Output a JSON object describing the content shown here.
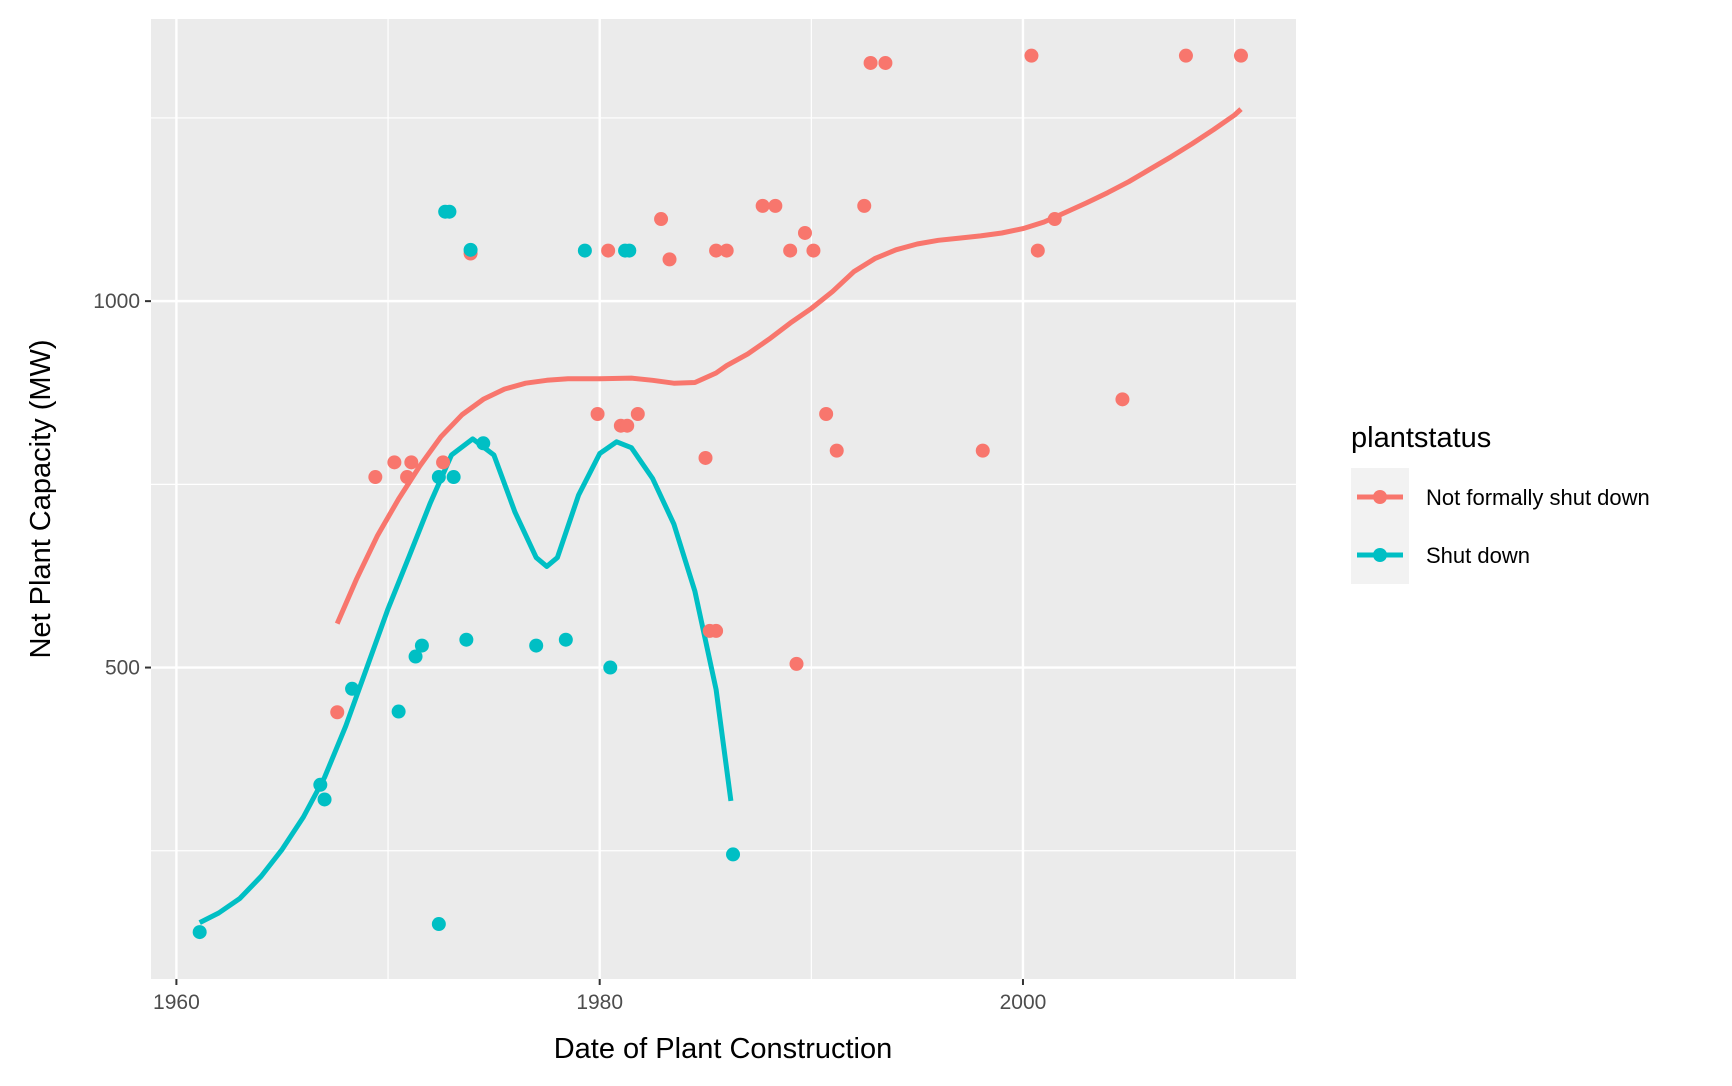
{
  "chart_data": {
    "type": "scatter",
    "xlabel": "Date of Plant Construction",
    "ylabel": "Net Plant Capacity (MW)",
    "xlim": [
      1958.8,
      2012.9
    ],
    "ylim": [
      75,
      1385
    ],
    "x_ticks": [
      1960,
      1980,
      2000
    ],
    "y_ticks": [
      500,
      1000
    ],
    "x_minor": [
      1970,
      1990,
      2010
    ],
    "y_minor": [
      250,
      750,
      1250
    ],
    "grid": true,
    "background": "#ebebeb",
    "legend": {
      "title": "plantstatus",
      "placement": "right",
      "entries": [
        "Not formally shut down",
        "Shut down"
      ]
    },
    "series": [
      {
        "name": "Not formally shut down",
        "color": "#f8766d",
        "points": [
          [
            1967.6,
            439
          ],
          [
            1969.4,
            760
          ],
          [
            1970.3,
            780
          ],
          [
            1970.9,
            760
          ],
          [
            1971.1,
            780
          ],
          [
            1972.6,
            780
          ],
          [
            1973.9,
            1065
          ],
          [
            1979.9,
            846
          ],
          [
            1980.4,
            1069
          ],
          [
            1981.0,
            830
          ],
          [
            1981.3,
            830
          ],
          [
            1981.8,
            846
          ],
          [
            1982.9,
            1112
          ],
          [
            1983.3,
            1057
          ],
          [
            1985.0,
            786
          ],
          [
            1985.2,
            550
          ],
          [
            1985.5,
            550
          ],
          [
            1985.5,
            1069
          ],
          [
            1986.0,
            1069
          ],
          [
            1987.7,
            1130
          ],
          [
            1988.3,
            1130
          ],
          [
            1989.0,
            1069
          ],
          [
            1989.3,
            505
          ],
          [
            1989.7,
            1093
          ],
          [
            1990.1,
            1069
          ],
          [
            1990.7,
            846
          ],
          [
            1991.2,
            796
          ],
          [
            1992.5,
            1130
          ],
          [
            1992.8,
            1325
          ],
          [
            1993.5,
            1325
          ],
          [
            1998.1,
            796
          ],
          [
            2000.4,
            1335
          ],
          [
            2000.7,
            1069
          ],
          [
            2001.5,
            1112
          ],
          [
            2004.7,
            866
          ],
          [
            2007.7,
            1335
          ],
          [
            2010.3,
            1335
          ]
        ],
        "smooth": [
          [
            1967.6,
            560
          ],
          [
            1968.5,
            620
          ],
          [
            1969.5,
            680
          ],
          [
            1970.5,
            730
          ],
          [
            1971.5,
            775
          ],
          [
            1972.5,
            815
          ],
          [
            1973.5,
            845
          ],
          [
            1974.5,
            866
          ],
          [
            1975.5,
            880
          ],
          [
            1976.5,
            888
          ],
          [
            1977.5,
            892
          ],
          [
            1978.5,
            894
          ],
          [
            1980.0,
            894
          ],
          [
            1981.5,
            895
          ],
          [
            1982.5,
            892
          ],
          [
            1983.5,
            888
          ],
          [
            1984.5,
            889
          ],
          [
            1985.5,
            902
          ],
          [
            1986.0,
            912
          ],
          [
            1987.0,
            928
          ],
          [
            1988.0,
            948
          ],
          [
            1989.0,
            970
          ],
          [
            1990.0,
            990
          ],
          [
            1991.0,
            1013
          ],
          [
            1992.0,
            1040
          ],
          [
            1993.0,
            1058
          ],
          [
            1994.0,
            1070
          ],
          [
            1995.0,
            1078
          ],
          [
            1996.0,
            1083
          ],
          [
            1997.0,
            1086
          ],
          [
            1998.0,
            1089
          ],
          [
            1999.0,
            1093
          ],
          [
            2000.0,
            1099
          ],
          [
            2001.0,
            1108
          ],
          [
            2002.0,
            1121
          ],
          [
            2003.0,
            1134
          ],
          [
            2004.0,
            1148
          ],
          [
            2005.0,
            1163
          ],
          [
            2006.0,
            1180
          ],
          [
            2007.0,
            1197
          ],
          [
            2008.0,
            1215
          ],
          [
            2009.0,
            1234
          ],
          [
            2010.0,
            1254
          ],
          [
            2010.3,
            1262
          ]
        ]
      },
      {
        "name": "Shut down",
        "color": "#00bfc4",
        "points": [
          [
            1961.1,
            139
          ],
          [
            1966.8,
            340
          ],
          [
            1967.0,
            320
          ],
          [
            1968.3,
            471
          ],
          [
            1970.5,
            440
          ],
          [
            1971.3,
            515
          ],
          [
            1971.6,
            530
          ],
          [
            1972.4,
            760
          ],
          [
            1972.4,
            150
          ],
          [
            1972.7,
            1122
          ],
          [
            1972.9,
            1122
          ],
          [
            1973.1,
            760
          ],
          [
            1973.7,
            538
          ],
          [
            1973.9,
            1070
          ],
          [
            1974.5,
            806
          ],
          [
            1977.0,
            530
          ],
          [
            1978.4,
            538
          ],
          [
            1979.3,
            1069
          ],
          [
            1980.5,
            500
          ],
          [
            1981.2,
            1069
          ],
          [
            1981.4,
            1069
          ],
          [
            1986.3,
            245
          ]
        ],
        "smooth": [
          [
            1961.1,
            152
          ],
          [
            1962.0,
            165
          ],
          [
            1963.0,
            185
          ],
          [
            1964.0,
            215
          ],
          [
            1965.0,
            252
          ],
          [
            1966.0,
            296
          ],
          [
            1967.0,
            350
          ],
          [
            1968.0,
            420
          ],
          [
            1969.0,
            500
          ],
          [
            1970.0,
            580
          ],
          [
            1971.0,
            652
          ],
          [
            1972.0,
            725
          ],
          [
            1973.0,
            790
          ],
          [
            1974.0,
            812
          ],
          [
            1975.0,
            790
          ],
          [
            1976.0,
            712
          ],
          [
            1977.0,
            650
          ],
          [
            1977.5,
            638
          ],
          [
            1978.0,
            650
          ],
          [
            1979.0,
            735
          ],
          [
            1980.0,
            792
          ],
          [
            1980.8,
            808
          ],
          [
            1981.5,
            800
          ],
          [
            1982.5,
            758
          ],
          [
            1983.5,
            696
          ],
          [
            1984.5,
            604
          ],
          [
            1985.5,
            470
          ],
          [
            1986.2,
            318
          ]
        ]
      }
    ]
  }
}
